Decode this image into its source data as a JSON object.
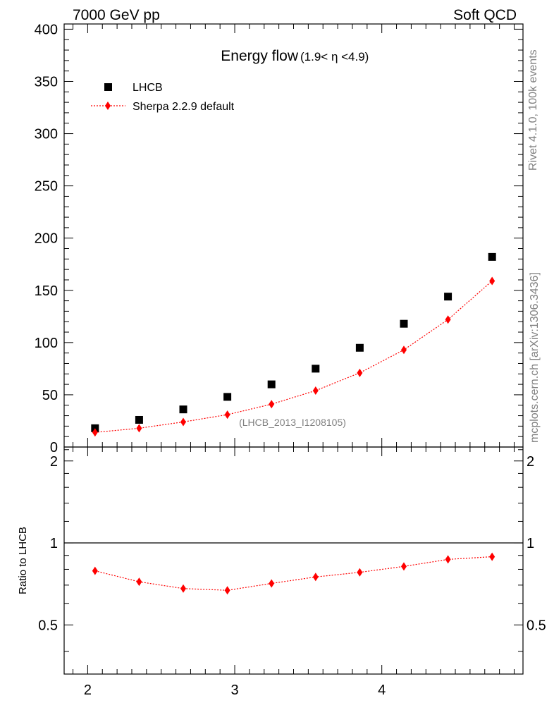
{
  "header": {
    "left": "7000 GeV pp",
    "right": "Soft QCD"
  },
  "side_labels": {
    "rivet": "Rivet 4.1.0,  100k events",
    "mcplots": "mcplots.cern.ch [arXiv:1306.3436]"
  },
  "colors": {
    "data": "#000000",
    "mc": "#ff0000",
    "side_text": "#808080"
  },
  "chart_data": [
    {
      "type": "scatter",
      "panel": "main",
      "title": "Energy flow",
      "title_sub": "(1.9< η <4.9)",
      "analysis_label": "(LHCB_2013_I1208105)",
      "xlabel": "",
      "ylabel": "",
      "xlim": [
        1.84,
        4.96
      ],
      "ylim": [
        0,
        405
      ],
      "yticks": [
        0,
        50,
        100,
        150,
        200,
        250,
        300,
        350,
        400
      ],
      "legend_position": "top-left",
      "legend": [
        "LHCB",
        "Sherpa 2.2.9 default"
      ],
      "x": [
        2.05,
        2.35,
        2.65,
        2.95,
        3.25,
        3.55,
        3.85,
        4.15,
        4.45,
        4.75
      ],
      "series": [
        {
          "name": "LHCB",
          "marker": "square",
          "values": [
            18,
            26,
            36,
            48,
            60,
            75,
            95,
            118,
            144,
            182
          ]
        },
        {
          "name": "Sherpa 2.2.9 default",
          "marker": "diamond",
          "line": "dotted",
          "values": [
            14,
            18,
            24,
            31,
            41,
            54,
            71,
            93,
            122,
            159
          ]
        }
      ]
    },
    {
      "type": "line",
      "panel": "ratio",
      "ylabel": "Ratio to LHCB",
      "xlim": [
        1.84,
        4.96
      ],
      "ylim": [
        0.33,
        2.25
      ],
      "xticks": [
        2,
        3,
        4
      ],
      "yticks": [
        0.5,
        1,
        2
      ],
      "reference_line": 1,
      "x": [
        2.05,
        2.35,
        2.65,
        2.95,
        3.25,
        3.55,
        3.85,
        4.15,
        4.45,
        4.75
      ],
      "series": [
        {
          "name": "Sherpa 2.2.9 default / LHCB",
          "marker": "diamond",
          "line": "dotted",
          "values": [
            0.79,
            0.72,
            0.68,
            0.67,
            0.71,
            0.75,
            0.78,
            0.82,
            0.87,
            0.89
          ]
        }
      ]
    }
  ]
}
